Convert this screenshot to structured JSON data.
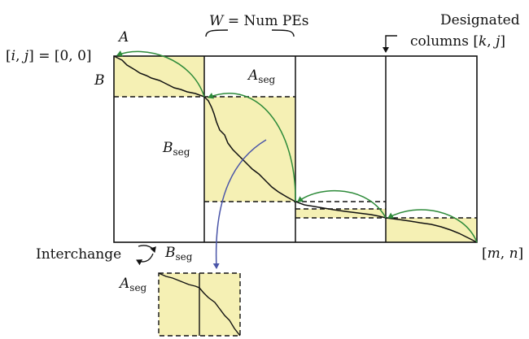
{
  "labels": {
    "w_eq": "W",
    "num_pes": " = Num PEs",
    "designated_line1": "Designated",
    "designated_line2": "columns [",
    "designated_k": "k",
    "designated_comma": ", ",
    "designated_j": "j",
    "designated_close": "]",
    "origin_open": "[",
    "origin_i": "i",
    "origin_comma": ", ",
    "origin_j": "j",
    "origin_rest": "] = [0, 0]",
    "a_top": "A",
    "b_left": "B",
    "a_seg_base": "A",
    "a_seg_sub": "seg",
    "b_seg_base": "B",
    "b_seg_sub": "seg",
    "end_open": "[",
    "end_m": "m",
    "end_comma": ", ",
    "end_n": "n",
    "end_close": "]",
    "interchange": "Interchange",
    "b_seg2_base": "B",
    "b_seg2_sub": "seg",
    "a_seg2_base": "A",
    "a_seg2_sub": "seg"
  },
  "colors": {
    "segment_fill": "#f5f0b4",
    "arc_green": "#2e8b3a",
    "arc_blue": "#4a55a8",
    "line": "#111111"
  }
}
